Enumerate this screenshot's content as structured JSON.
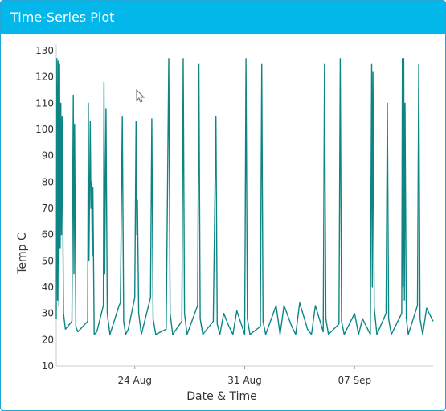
{
  "panel": {
    "title": "Time-Series Plot"
  },
  "colors": {
    "header_bg": "#04b7ea",
    "line": "#0e8585"
  },
  "chart_data": {
    "type": "line",
    "xlabel": "Date & Time",
    "ylabel": "Temp C",
    "x_range": [
      "2023-08-19",
      "2023-09-12"
    ],
    "ylim": [
      10,
      130
    ],
    "y_ticks": [
      10,
      20,
      30,
      40,
      50,
      60,
      70,
      80,
      90,
      100,
      110,
      120,
      130
    ],
    "x_ticks": [
      {
        "date": "2023-08-24",
        "label": "24 Aug"
      },
      {
        "date": "2023-08-31",
        "label": "31 Aug"
      },
      {
        "date": "2023-09-07",
        "label": "07 Sep"
      }
    ],
    "grid": false,
    "series": [
      {
        "color": "#0e8585",
        "points": [
          [
            "2023-08-19 00:00",
            28
          ],
          [
            "2023-08-19 01:00",
            127
          ],
          [
            "2023-08-19 02:00",
            35
          ],
          [
            "2023-08-19 03:00",
            126
          ],
          [
            "2023-08-19 04:00",
            33
          ],
          [
            "2023-08-19 05:00",
            125
          ],
          [
            "2023-08-19 06:00",
            55
          ],
          [
            "2023-08-19 07:00",
            110
          ],
          [
            "2023-08-19 08:00",
            60
          ],
          [
            "2023-08-19 09:00",
            105
          ],
          [
            "2023-08-19 11:00",
            30
          ],
          [
            "2023-08-19 14:00",
            24
          ],
          [
            "2023-08-20 00:00",
            27
          ],
          [
            "2023-08-20 02:00",
            113
          ],
          [
            "2023-08-20 03:00",
            45
          ],
          [
            "2023-08-20 04:00",
            102
          ],
          [
            "2023-08-20 06:00",
            25
          ],
          [
            "2023-08-20 09:00",
            23
          ],
          [
            "2023-08-21 00:00",
            27
          ],
          [
            "2023-08-21 01:00",
            110
          ],
          [
            "2023-08-21 02:00",
            50
          ],
          [
            "2023-08-21 04:00",
            103
          ],
          [
            "2023-08-21 05:00",
            70
          ],
          [
            "2023-08-21 06:00",
            80
          ],
          [
            "2023-08-21 07:00",
            52
          ],
          [
            "2023-08-21 08:00",
            78
          ],
          [
            "2023-08-21 10:00",
            22
          ],
          [
            "2023-08-21 14:00",
            23
          ],
          [
            "2023-08-22 00:00",
            33
          ],
          [
            "2023-08-22 01:00",
            118
          ],
          [
            "2023-08-22 02:00",
            45
          ],
          [
            "2023-08-22 04:00",
            108
          ],
          [
            "2023-08-22 06:00",
            30
          ],
          [
            "2023-08-22 10:00",
            22
          ],
          [
            "2023-08-23 00:00",
            33
          ],
          [
            "2023-08-23 02:00",
            34
          ],
          [
            "2023-08-23 05:00",
            105
          ],
          [
            "2023-08-23 07:00",
            27
          ],
          [
            "2023-08-23 10:00",
            22
          ],
          [
            "2023-08-23 14:00",
            24
          ],
          [
            "2023-08-24 00:00",
            36
          ],
          [
            "2023-08-24 02:00",
            103
          ],
          [
            "2023-08-24 03:00",
            60
          ],
          [
            "2023-08-24 04:00",
            73
          ],
          [
            "2023-08-24 06:00",
            30
          ],
          [
            "2023-08-24 10:00",
            22
          ],
          [
            "2023-08-25 00:00",
            36
          ],
          [
            "2023-08-25 02:00",
            104
          ],
          [
            "2023-08-25 04:00",
            28
          ],
          [
            "2023-08-25 08:00",
            22
          ],
          [
            "2023-08-26 00:00",
            24
          ],
          [
            "2023-08-26 04:00",
            127
          ],
          [
            "2023-08-26 06:00",
            30
          ],
          [
            "2023-08-26 10:00",
            22
          ],
          [
            "2023-08-27 00:00",
            27
          ],
          [
            "2023-08-27 02:00",
            127
          ],
          [
            "2023-08-27 04:00",
            30
          ],
          [
            "2023-08-27 08:00",
            22
          ],
          [
            "2023-08-28 00:00",
            33
          ],
          [
            "2023-08-28 02:00",
            125
          ],
          [
            "2023-08-28 04:00",
            28
          ],
          [
            "2023-08-28 08:00",
            22
          ],
          [
            "2023-08-29 00:00",
            27
          ],
          [
            "2023-08-29 04:00",
            105
          ],
          [
            "2023-08-29 06:00",
            26
          ],
          [
            "2023-08-29 10:00",
            22
          ],
          [
            "2023-08-29 16:00",
            30
          ],
          [
            "2023-08-30 00:00",
            25
          ],
          [
            "2023-08-30 06:00",
            22
          ],
          [
            "2023-08-30 12:00",
            31
          ],
          [
            "2023-08-31 00:00",
            22
          ],
          [
            "2023-08-31 02:00",
            127
          ],
          [
            "2023-08-31 04:00",
            28
          ],
          [
            "2023-08-31 08:00",
            22
          ],
          [
            "2023-09-01 00:00",
            25
          ],
          [
            "2023-09-01 02:00",
            125
          ],
          [
            "2023-09-01 04:00",
            27
          ],
          [
            "2023-09-01 08:00",
            22
          ],
          [
            "2023-09-02 00:00",
            33
          ],
          [
            "2023-09-02 06:00",
            22
          ],
          [
            "2023-09-02 12:00",
            33
          ],
          [
            "2023-09-03 00:00",
            25
          ],
          [
            "2023-09-03 06:00",
            22
          ],
          [
            "2023-09-03 12:00",
            34
          ],
          [
            "2023-09-04 00:00",
            24
          ],
          [
            "2023-09-04 06:00",
            22
          ],
          [
            "2023-09-04 12:00",
            33
          ],
          [
            "2023-09-05 00:00",
            23
          ],
          [
            "2023-09-05 02:00",
            125
          ],
          [
            "2023-09-05 04:00",
            28
          ],
          [
            "2023-09-05 08:00",
            22
          ],
          [
            "2023-09-06 00:00",
            26
          ],
          [
            "2023-09-06 02:00",
            127
          ],
          [
            "2023-09-06 04:00",
            27
          ],
          [
            "2023-09-06 08:00",
            22
          ],
          [
            "2023-09-07 00:00",
            30
          ],
          [
            "2023-09-07 06:00",
            22
          ],
          [
            "2023-09-07 12:00",
            28
          ],
          [
            "2023-09-08 00:00",
            22
          ],
          [
            "2023-09-08 02:00",
            125
          ],
          [
            "2023-09-08 03:00",
            40
          ],
          [
            "2023-09-08 04:00",
            122
          ],
          [
            "2023-09-08 06:00",
            32
          ],
          [
            "2023-09-08 10:00",
            22
          ],
          [
            "2023-09-09 00:00",
            30
          ],
          [
            "2023-09-09 02:00",
            110
          ],
          [
            "2023-09-09 04:00",
            28
          ],
          [
            "2023-09-09 08:00",
            22
          ],
          [
            "2023-09-10 00:00",
            30
          ],
          [
            "2023-09-10 01:00",
            127
          ],
          [
            "2023-09-10 02:00",
            40
          ],
          [
            "2023-09-10 03:00",
            127
          ],
          [
            "2023-09-10 04:00",
            35
          ],
          [
            "2023-09-10 05:00",
            110
          ],
          [
            "2023-09-10 07:00",
            28
          ],
          [
            "2023-09-10 10:00",
            22
          ],
          [
            "2023-09-11 00:00",
            33
          ],
          [
            "2023-09-11 02:00",
            125
          ],
          [
            "2023-09-11 04:00",
            28
          ],
          [
            "2023-09-11 08:00",
            22
          ],
          [
            "2023-09-11 14:00",
            32
          ],
          [
            "2023-09-12 00:00",
            27
          ]
        ]
      }
    ]
  }
}
